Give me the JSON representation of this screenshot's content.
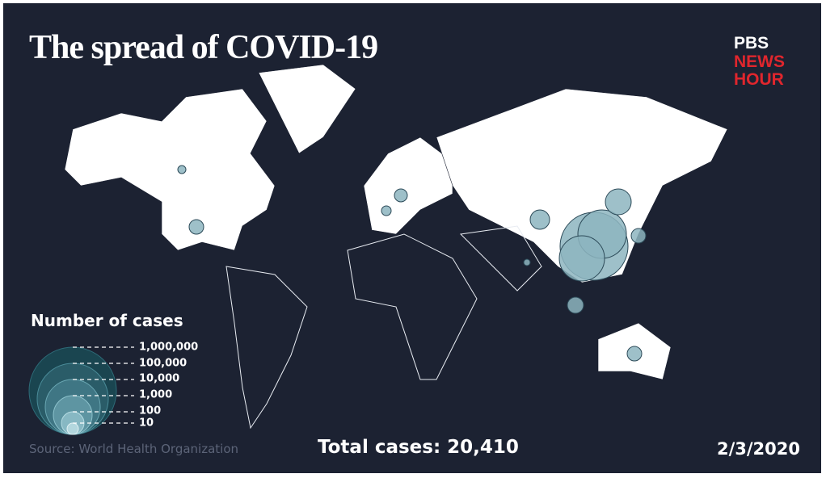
{
  "header": {
    "title": "The spread of COVID-19",
    "logo": [
      "PBS",
      "NEWS",
      "HOUR"
    ]
  },
  "legend": {
    "title": "Number of cases",
    "labels": [
      "1,000,000",
      "100,000",
      "10,000",
      "1,000",
      "100",
      "10"
    ]
  },
  "footer": {
    "source": "Source: World Health Organization",
    "total": "Total cases: 20,410",
    "date": "2/3/2020"
  }
}
